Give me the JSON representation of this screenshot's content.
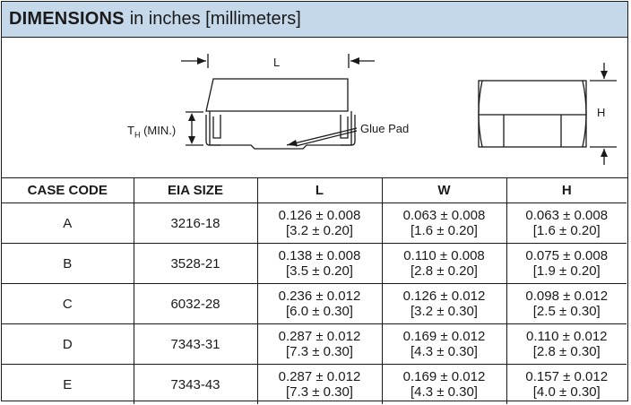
{
  "title": {
    "bold": "DIMENSIONS",
    "rest": "in inches [millimeters]"
  },
  "drawing": {
    "label_L": "L",
    "label_TH_main": "T",
    "label_TH_sub": "H",
    "label_TH_rest": " (MIN.)",
    "label_glue": "Glue Pad",
    "label_H": "H"
  },
  "table": {
    "headers": [
      "CASE CODE",
      "EIA SIZE",
      "L",
      "W",
      "H"
    ],
    "rows": [
      {
        "case": "A",
        "eia": "3216-18",
        "L": [
          "0.126 ± 0.008",
          "[3.2 ± 0.20]"
        ],
        "W": [
          "0.063 ± 0.008",
          "[1.6 ± 0.20]"
        ],
        "H": [
          "0.063 ± 0.008",
          "[1.6 ± 0.20]"
        ]
      },
      {
        "case": "B",
        "eia": "3528-21",
        "L": [
          "0.138 ± 0.008",
          "[3.5 ± 0.20]"
        ],
        "W": [
          "0.110 ± 0.008",
          "[2.8 ± 0.20]"
        ],
        "H": [
          "0.075 ± 0.008",
          "[1.9 ± 0.20]"
        ]
      },
      {
        "case": "C",
        "eia": "6032-28",
        "L": [
          "0.236 ± 0.012",
          "[6.0 ± 0.30]"
        ],
        "W": [
          "0.126 ± 0.012",
          "[3.2 ± 0.30]"
        ],
        "H": [
          "0.098 ± 0.012",
          "[2.5 ± 0.30]"
        ]
      },
      {
        "case": "D",
        "eia": "7343-31",
        "L": [
          "0.287 ± 0.012",
          "[7.3 ± 0.30]"
        ],
        "W": [
          "0.169 ± 0.012",
          "[4.3 ± 0.30]"
        ],
        "H": [
          "0.110 ± 0.012",
          "[2.8 ± 0.30]"
        ]
      },
      {
        "case": "E",
        "eia": "7343-43",
        "L": [
          "0.287 ± 0.012",
          "[7.3 ± 0.30]"
        ],
        "W": [
          "0.169 ± 0.012",
          "[4.3 ± 0.30]"
        ],
        "H": [
          "0.157 ± 0.012",
          "[4.0 ± 0.30]"
        ]
      }
    ]
  }
}
